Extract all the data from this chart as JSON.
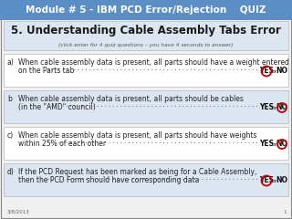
{
  "title_bar_text": "Module # 5 - IBM PCD Error/Rejection    QUIZ",
  "title_bar_bg": "#5b8ec4",
  "title_bar_text_color": "#ffffff",
  "slide_bg": "#f0f0f0",
  "header_bg": "#dce6f1",
  "header_title_bold": "5. Understanding Cable Assembly ",
  "header_title_normal": "Tabs",
  "header_title_bold2": " Error",
  "header_subtitle": "(click enter for 4 quiz questions – you have 4 seconds to answer)",
  "questions": [
    {
      "label": "a)",
      "text1": "When cable assembly data is present, all parts should have a weight entered",
      "text2": "on the Parts tab",
      "circled": "YES"
    },
    {
      "label": "b",
      "text1": "When cable assembly data is present, all parts should be cables",
      "text2": "(in the \"AMD\" council)",
      "circled": "NO"
    },
    {
      "label": "c)",
      "text1": "When cable assembly data is present, all parts should have weights",
      "text2": "within 25% of each other",
      "circled": "NO"
    },
    {
      "label": "d)",
      "text1": "If the PCD Request has been marked as being for a Cable Assembly,",
      "text2": "then the PCD Form should have corresponding data",
      "circled": "YES"
    }
  ],
  "footer_text": "3/8/2013",
  "footer_page": "1",
  "circle_color": "#c00000",
  "box_border_color": "#b0b8c0",
  "question_bg": "#ffffff",
  "question_bg_alt": "#dce6f1"
}
